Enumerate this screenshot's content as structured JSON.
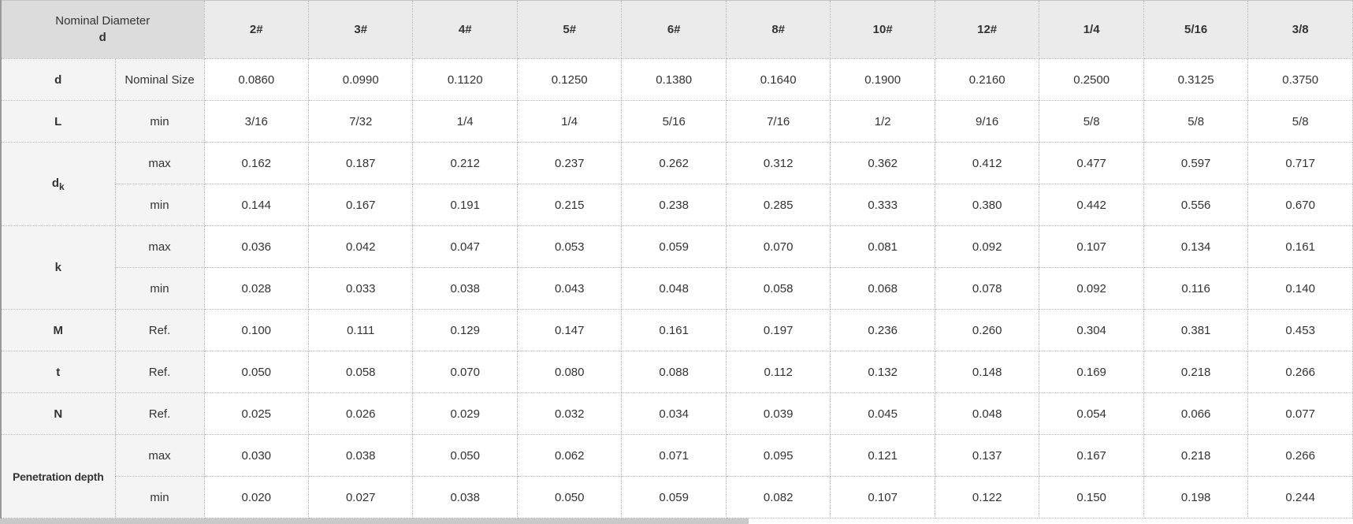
{
  "header": {
    "corner_line1": "Nominal Diameter",
    "corner_line2": "d",
    "columns": [
      "2#",
      "3#",
      "4#",
      "5#",
      "6#",
      "8#",
      "10#",
      "12#",
      "1/4",
      "5/16",
      "3/8"
    ]
  },
  "rows": [
    {
      "label": "d",
      "spec": "Nominal Size",
      "values": [
        "0.0860",
        "0.0990",
        "0.1120",
        "0.1250",
        "0.1380",
        "0.1640",
        "0.1900",
        "0.2160",
        "0.2500",
        "0.3125",
        "0.3750"
      ]
    },
    {
      "label": "L",
      "spec": "min",
      "values": [
        "3/16",
        "7/32",
        "1/4",
        "1/4",
        "5/16",
        "7/16",
        "1/2",
        "9/16",
        "5/8",
        "5/8",
        "5/8"
      ]
    },
    {
      "label": "d",
      "sub": "k",
      "subrows": [
        {
          "spec": "max",
          "values": [
            "0.162",
            "0.187",
            "0.212",
            "0.237",
            "0.262",
            "0.312",
            "0.362",
            "0.412",
            "0.477",
            "0.597",
            "0.717"
          ]
        },
        {
          "spec": "min",
          "values": [
            "0.144",
            "0.167",
            "0.191",
            "0.215",
            "0.238",
            "0.285",
            "0.333",
            "0.380",
            "0.442",
            "0.556",
            "0.670"
          ]
        }
      ]
    },
    {
      "label": "k",
      "subrows": [
        {
          "spec": "max",
          "values": [
            "0.036",
            "0.042",
            "0.047",
            "0.053",
            "0.059",
            "0.070",
            "0.081",
            "0.092",
            "0.107",
            "0.134",
            "0.161"
          ]
        },
        {
          "spec": "min",
          "values": [
            "0.028",
            "0.033",
            "0.038",
            "0.043",
            "0.048",
            "0.058",
            "0.068",
            "0.078",
            "0.092",
            "0.116",
            "0.140"
          ]
        }
      ]
    },
    {
      "label": "M",
      "spec": "Ref.",
      "values": [
        "0.100",
        "0.111",
        "0.129",
        "0.147",
        "0.161",
        "0.197",
        "0.236",
        "0.260",
        "0.304",
        "0.381",
        "0.453"
      ]
    },
    {
      "label": "t",
      "spec": "Ref.",
      "values": [
        "0.050",
        "0.058",
        "0.070",
        "0.080",
        "0.088",
        "0.112",
        "0.132",
        "0.148",
        "0.169",
        "0.218",
        "0.266"
      ]
    },
    {
      "label": "N",
      "spec": "Ref.",
      "values": [
        "0.025",
        "0.026",
        "0.029",
        "0.032",
        "0.034",
        "0.039",
        "0.045",
        "0.048",
        "0.054",
        "0.066",
        "0.077"
      ]
    },
    {
      "label": "Penetration depth",
      "small": true,
      "subrows": [
        {
          "spec": "max",
          "values": [
            "0.030",
            "0.038",
            "0.050",
            "0.062",
            "0.071",
            "0.095",
            "0.121",
            "0.137",
            "0.167",
            "0.218",
            "0.266"
          ]
        },
        {
          "spec": "min",
          "values": [
            "0.020",
            "0.027",
            "0.038",
            "0.050",
            "0.059",
            "0.082",
            "0.107",
            "0.122",
            "0.150",
            "0.198",
            "0.244"
          ]
        }
      ]
    }
  ],
  "colors": {
    "header_text_blue": "#1074bc",
    "corner_background": "#dcdcdc",
    "column_header_background": "#ebebeb",
    "label_background": "#f4f4f4",
    "cell_background": "#ffffff",
    "text": "#333333",
    "border": "#b7b7b7"
  }
}
